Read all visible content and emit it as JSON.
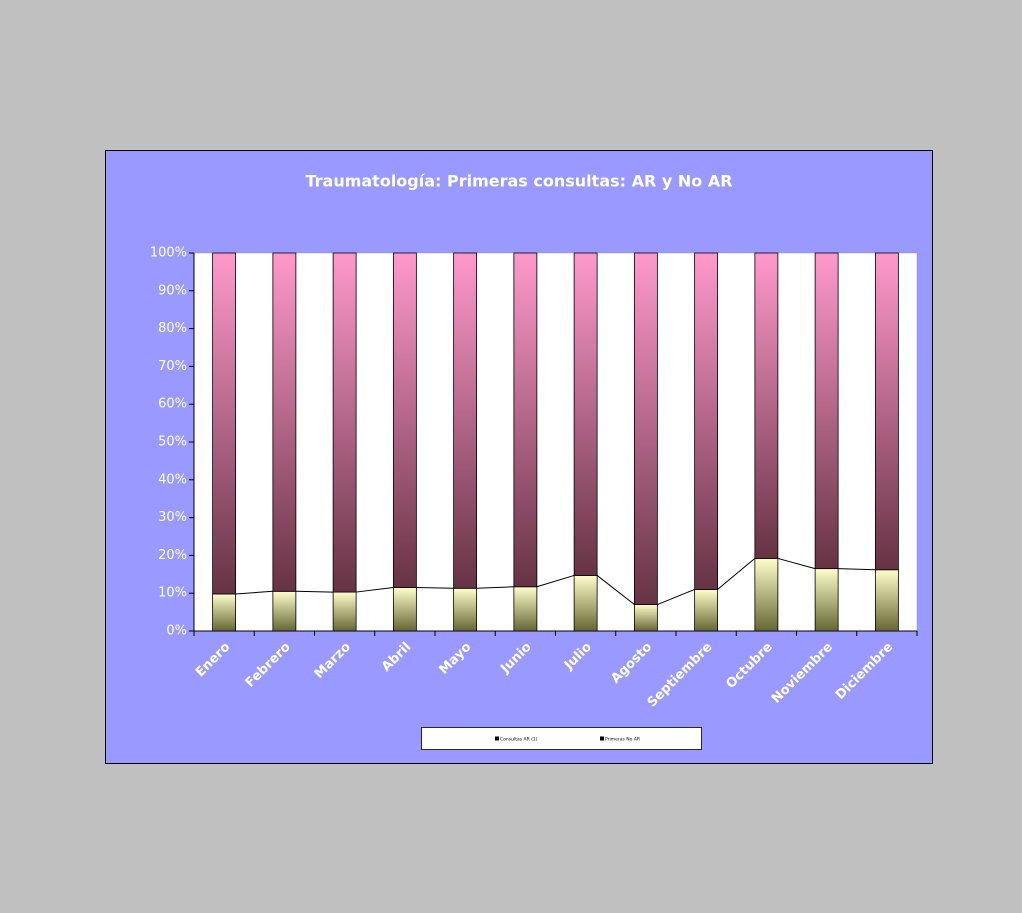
{
  "chart_data": {
    "type": "stacked_bar_100",
    "title": "Traumatología: Primeras consultas: AR y No AR",
    "categories": [
      "Enero",
      "Febrero",
      "Marzo",
      "Abril",
      "Mayo",
      "Junio",
      "Julio",
      "Agosto",
      "Septiembre",
      "Octubre",
      "Noviembre",
      "Diciembre"
    ],
    "series": [
      {
        "name": "Consultas AR (1)",
        "color": [
          "#ffffcc",
          "#666633"
        ],
        "values": [
          9.8,
          10.5,
          10.3,
          11.5,
          11.3,
          11.7,
          14.7,
          7.0,
          11.0,
          19.2,
          16.5,
          16.2
        ]
      },
      {
        "name": "Primeras No AR",
        "color": [
          "#ff99cc",
          "#663344"
        ],
        "values": [
          90.2,
          89.5,
          89.7,
          88.5,
          88.7,
          88.3,
          85.3,
          93.0,
          89.0,
          80.8,
          83.5,
          83.8
        ]
      }
    ],
    "ylim": [
      0,
      100
    ],
    "yticks": [
      {
        "value": 0,
        "label": "0%"
      },
      {
        "value": 10,
        "label": "10%"
      },
      {
        "value": 20,
        "label": "20%"
      },
      {
        "value": 30,
        "label": "30%"
      },
      {
        "value": 40,
        "label": "40%"
      },
      {
        "value": 50,
        "label": "50%"
      },
      {
        "value": 60,
        "label": "60%"
      },
      {
        "value": 70,
        "label": "70%"
      },
      {
        "value": 80,
        "label": "80%"
      },
      {
        "value": 90,
        "label": "90%"
      },
      {
        "value": 100,
        "label": "100%"
      }
    ],
    "series_lines": true,
    "legend": "bottom"
  }
}
